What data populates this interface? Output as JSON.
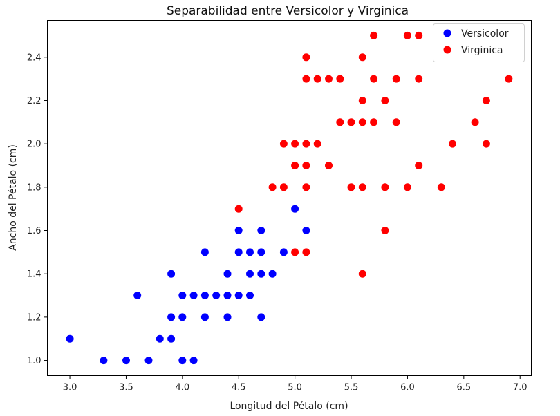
{
  "chart_data": {
    "type": "scatter",
    "title": "Separabilidad entre Versicolor y Virginica",
    "xlabel": "Longitud del Pétalo (cm)",
    "ylabel": "Ancho del Pétalo (cm)",
    "xlim": [
      2.8,
      7.1
    ],
    "ylim": [
      0.93,
      2.57
    ],
    "xticks": [
      3.0,
      3.5,
      4.0,
      4.5,
      5.0,
      5.5,
      6.0,
      6.5,
      7.0
    ],
    "xtick_labels": [
      "3.0",
      "3.5",
      "4.0",
      "4.5",
      "5.0",
      "5.5",
      "6.0",
      "6.5",
      "7.0"
    ],
    "yticks": [
      1.0,
      1.2,
      1.4,
      1.6,
      1.8,
      2.0,
      2.2,
      2.4
    ],
    "ytick_labels": [
      "1.0",
      "1.2",
      "1.4",
      "1.6",
      "1.8",
      "2.0",
      "2.2",
      "2.4"
    ],
    "grid": false,
    "legend": "top-right",
    "series": [
      {
        "name": "Versicolor",
        "color": "#0000ff",
        "points": [
          [
            3.0,
            1.1
          ],
          [
            3.3,
            1.0
          ],
          [
            3.5,
            1.0
          ],
          [
            3.7,
            1.0
          ],
          [
            4.0,
            1.0
          ],
          [
            4.1,
            1.0
          ],
          [
            3.6,
            1.3
          ],
          [
            3.8,
            1.1
          ],
          [
            3.9,
            1.1
          ],
          [
            3.9,
            1.2
          ],
          [
            3.9,
            1.4
          ],
          [
            4.0,
            1.2
          ],
          [
            4.0,
            1.3
          ],
          [
            4.1,
            1.3
          ],
          [
            4.2,
            1.2
          ],
          [
            4.2,
            1.3
          ],
          [
            4.2,
            1.5
          ],
          [
            4.3,
            1.3
          ],
          [
            4.4,
            1.2
          ],
          [
            4.4,
            1.3
          ],
          [
            4.4,
            1.4
          ],
          [
            4.5,
            1.3
          ],
          [
            4.5,
            1.5
          ],
          [
            4.5,
            1.6
          ],
          [
            4.6,
            1.3
          ],
          [
            4.6,
            1.4
          ],
          [
            4.6,
            1.5
          ],
          [
            4.7,
            1.2
          ],
          [
            4.7,
            1.4
          ],
          [
            4.7,
            1.5
          ],
          [
            4.7,
            1.6
          ],
          [
            4.8,
            1.4
          ],
          [
            4.9,
            1.5
          ],
          [
            5.0,
            1.7
          ],
          [
            5.1,
            1.6
          ]
        ]
      },
      {
        "name": "Virginica",
        "color": "#ff0000",
        "points": [
          [
            4.5,
            1.7
          ],
          [
            4.8,
            1.8
          ],
          [
            4.9,
            1.8
          ],
          [
            4.9,
            2.0
          ],
          [
            5.0,
            1.5
          ],
          [
            5.0,
            1.9
          ],
          [
            5.0,
            2.0
          ],
          [
            5.1,
            1.5
          ],
          [
            5.1,
            1.8
          ],
          [
            5.1,
            1.9
          ],
          [
            5.1,
            2.0
          ],
          [
            5.1,
            2.3
          ],
          [
            5.1,
            2.4
          ],
          [
            5.2,
            2.0
          ],
          [
            5.2,
            2.3
          ],
          [
            5.3,
            1.9
          ],
          [
            5.3,
            2.3
          ],
          [
            5.4,
            2.1
          ],
          [
            5.4,
            2.3
          ],
          [
            5.5,
            1.8
          ],
          [
            5.5,
            2.1
          ],
          [
            5.6,
            1.4
          ],
          [
            5.6,
            1.8
          ],
          [
            5.6,
            2.1
          ],
          [
            5.6,
            2.2
          ],
          [
            5.6,
            2.4
          ],
          [
            5.7,
            2.1
          ],
          [
            5.7,
            2.3
          ],
          [
            5.7,
            2.5
          ],
          [
            5.8,
            1.6
          ],
          [
            5.8,
            1.8
          ],
          [
            5.8,
            2.2
          ],
          [
            5.9,
            2.1
          ],
          [
            5.9,
            2.3
          ],
          [
            6.0,
            1.8
          ],
          [
            6.0,
            2.5
          ],
          [
            6.1,
            1.9
          ],
          [
            6.1,
            2.3
          ],
          [
            6.1,
            2.5
          ],
          [
            6.3,
            1.8
          ],
          [
            6.4,
            2.0
          ],
          [
            6.6,
            2.1
          ],
          [
            6.7,
            2.0
          ],
          [
            6.7,
            2.2
          ],
          [
            6.9,
            2.3
          ]
        ]
      }
    ]
  }
}
